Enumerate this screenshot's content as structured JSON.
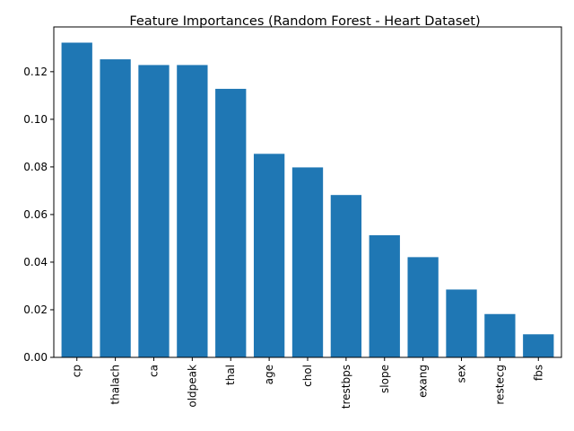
{
  "chart_data": {
    "type": "bar",
    "title": "Feature Importances (Random Forest - Heart Dataset)",
    "xlabel": "",
    "ylabel": "",
    "categories": [
      "cp",
      "thalach",
      "ca",
      "oldpeak",
      "thal",
      "age",
      "chol",
      "trestbps",
      "slope",
      "exang",
      "sex",
      "restecg",
      "fbs"
    ],
    "values": [
      0.1322,
      0.1252,
      0.1228,
      0.1228,
      0.1128,
      0.0855,
      0.0798,
      0.0682,
      0.0513,
      0.0421,
      0.0285,
      0.0182,
      0.0097
    ],
    "ylim": [
      0,
      0.1388
    ],
    "yticks": [
      0.0,
      0.02,
      0.04,
      0.06,
      0.08,
      0.1,
      0.12
    ],
    "ytick_labels": [
      "0.00",
      "0.02",
      "0.04",
      "0.06",
      "0.08",
      "0.10",
      "0.12"
    ],
    "grid": false,
    "legend": "none",
    "bar_color": "#1f77b4"
  }
}
